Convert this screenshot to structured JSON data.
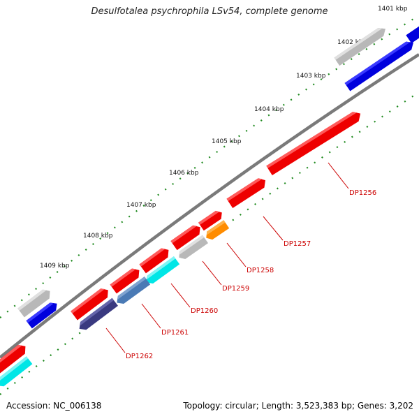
{
  "title": "Desulfotalea psychrophila LSv54, complete genome",
  "accession": "Accession: NC_006138",
  "summary": "Topology: circular; Length: 3,523,383 bp; Genes: 3,202",
  "tick_labels": [
    "1401 kbp",
    "1402 kbp",
    "1403 kbp",
    "1404 kbp",
    "1405 kbp",
    "1406 kbp",
    "1407 kbp",
    "1408 kbp",
    "1409 kbp"
  ],
  "gene_labels": [
    "DP1256",
    "DP1257",
    "DP1258",
    "DP1259",
    "DP1260",
    "DP1261",
    "DP1262"
  ],
  "colors": {
    "backbone": "#7a7a7a",
    "dotted_track": "#1f8a1f",
    "label": "#cc0000",
    "red": "#ee0000",
    "grey": "#b8b8b8",
    "blue": "#0000dd",
    "cyan": "#00e6e6",
    "steel_blue": "#4a7ab5",
    "navy": "#3a3a80",
    "orange": "#ff8c00"
  }
}
